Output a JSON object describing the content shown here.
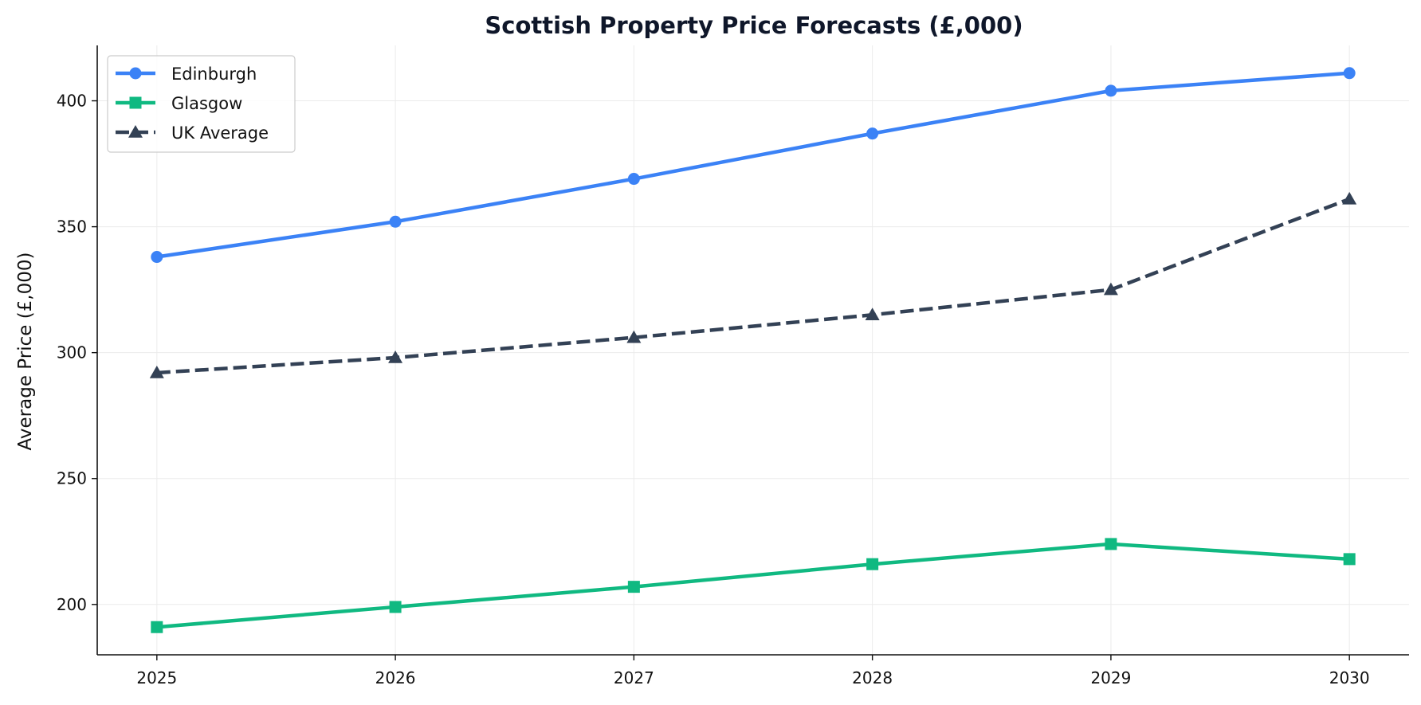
{
  "chart_data": {
    "type": "line",
    "title": "Scottish Property Price Forecasts (£,000)",
    "xlabel": "",
    "ylabel": "Average Price (£,000)",
    "x": [
      2025,
      2026,
      2027,
      2028,
      2029,
      2030
    ],
    "x_tick_labels": [
      "2025",
      "2026",
      "2027",
      "2028",
      "2029",
      "2030"
    ],
    "xlim": [
      2024.75,
      2030.25
    ],
    "ylim": [
      180,
      422
    ],
    "y_ticks": [
      200,
      250,
      300,
      350,
      400
    ],
    "y_tick_labels": [
      "200",
      "250",
      "300",
      "350",
      "400"
    ],
    "grid": true,
    "legend_position": "top-left",
    "series": [
      {
        "name": "Edinburgh",
        "values": [
          338,
          352,
          369,
          387,
          404,
          411
        ],
        "color": "#3b82f6",
        "marker": "circle",
        "line_style": "solid"
      },
      {
        "name": "Glasgow",
        "values": [
          191,
          199,
          207,
          216,
          224,
          218
        ],
        "color": "#10b981",
        "marker": "square",
        "line_style": "solid"
      },
      {
        "name": "UK Average",
        "values": [
          292,
          298,
          306,
          315,
          325,
          361
        ],
        "color": "#334155",
        "marker": "triangle",
        "line_style": "dashed"
      }
    ]
  }
}
